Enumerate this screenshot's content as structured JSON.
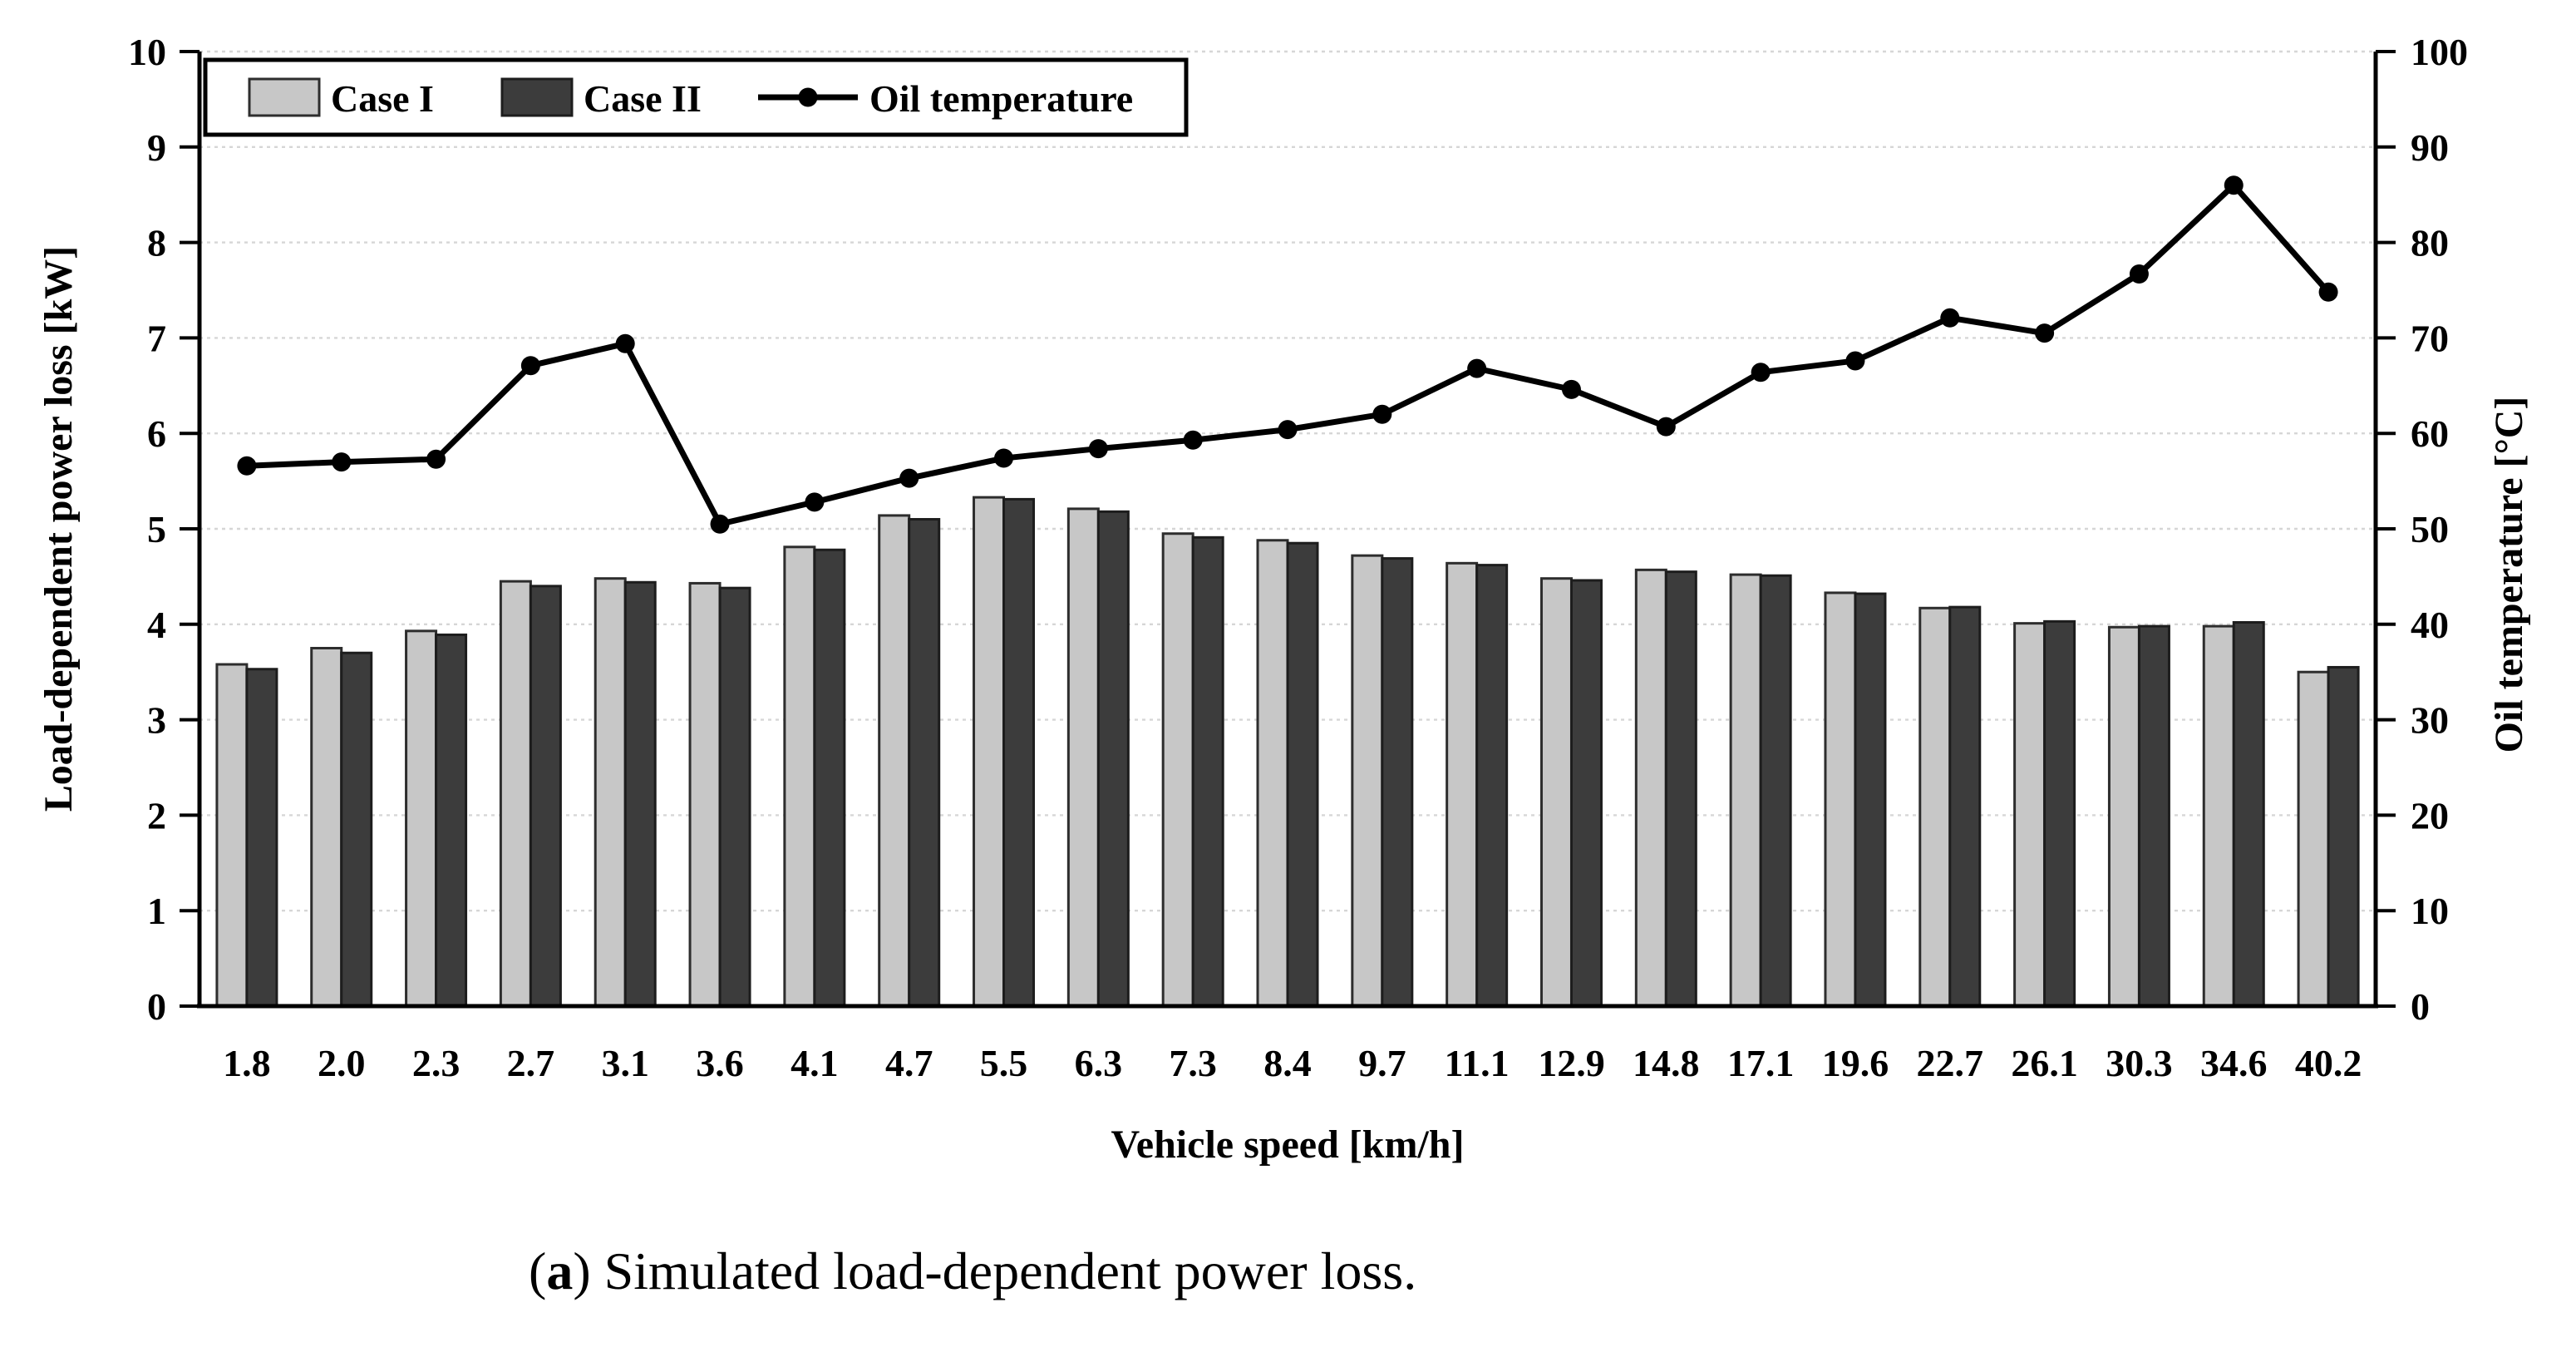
{
  "figure": {
    "caption": {
      "open": "(",
      "label": "a",
      "rest": ") Simulated load-dependent power loss."
    }
  },
  "chart_data": {
    "type": "bar",
    "subtype": "grouped-bars-with-line-overlay",
    "title": "",
    "xlabel": "Vehicle speed [km/h]",
    "ylabel_left": "Load-dependent power loss [kW]",
    "ylabel_right": "Oil temperature [°C]",
    "ylim_left": [
      0,
      10
    ],
    "ylim_right": [
      0,
      100
    ],
    "yticks_left": [
      0,
      1,
      2,
      3,
      4,
      5,
      6,
      7,
      8,
      9,
      10
    ],
    "yticks_right": [
      0,
      10,
      20,
      30,
      40,
      50,
      60,
      70,
      80,
      90,
      100
    ],
    "grid": "horizontal-dotted",
    "legend_position": "top-left-inside-box",
    "categories": [
      "1.8",
      "2.0",
      "2.3",
      "2.7",
      "3.1",
      "3.6",
      "4.1",
      "4.7",
      "5.5",
      "6.3",
      "7.3",
      "8.4",
      "9.7",
      "11.1",
      "12.9",
      "14.8",
      "17.1",
      "19.6",
      "22.7",
      "26.1",
      "30.3",
      "34.6",
      "40.2"
    ],
    "series": [
      {
        "name": "Case I",
        "type": "bar",
        "axis": "left",
        "fill": "#c7c7c7",
        "stroke": "#2d2d2d",
        "values": [
          3.58,
          3.75,
          3.93,
          4.45,
          4.48,
          4.43,
          4.81,
          5.14,
          5.33,
          5.21,
          4.95,
          4.88,
          4.72,
          4.64,
          4.48,
          4.57,
          4.52,
          4.33,
          4.17,
          4.01,
          3.97,
          3.98,
          3.5
        ]
      },
      {
        "name": "Case II",
        "type": "bar",
        "axis": "left",
        "fill": "#3c3c3c",
        "stroke": "#1d1d1d",
        "values": [
          3.53,
          3.7,
          3.89,
          4.4,
          4.44,
          4.38,
          4.78,
          5.1,
          5.31,
          5.18,
          4.91,
          4.85,
          4.69,
          4.62,
          4.46,
          4.55,
          4.51,
          4.32,
          4.18,
          4.03,
          3.98,
          4.02,
          3.55
        ]
      },
      {
        "name": "Oil temperature",
        "type": "line",
        "axis": "right",
        "stroke": "#000000",
        "values": [
          56.6,
          57.0,
          57.3,
          67.1,
          69.4,
          50.5,
          52.8,
          55.3,
          57.4,
          58.4,
          59.3,
          60.4,
          62.0,
          66.8,
          64.6,
          60.7,
          66.4,
          67.6,
          72.1,
          70.5,
          76.7,
          86.0,
          74.8
        ]
      }
    ],
    "colors": {
      "axis": "#000000",
      "gridline": "#d6d6d6",
      "background": "#ffffff",
      "legend_border": "#000000"
    }
  }
}
